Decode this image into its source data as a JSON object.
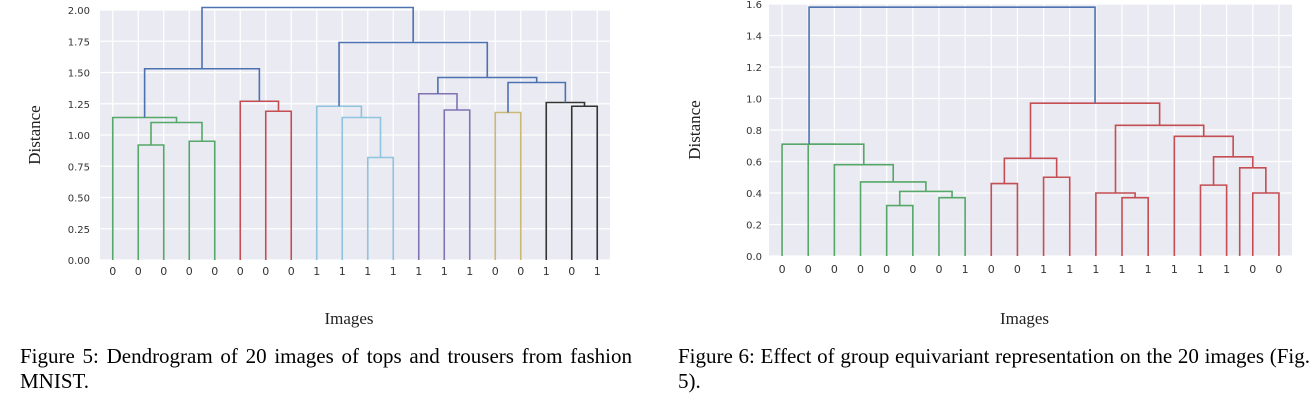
{
  "figures": [
    {
      "caption": "Figure 5: Dendrogram of 20 images of tops and trousers from fashion MNIST.",
      "chart_data": {
        "type": "dendrogram",
        "xlabel": "Images",
        "ylabel": "Distance",
        "ylim": [
          0,
          2.0
        ],
        "yticks": [
          "0.00",
          "0.25",
          "0.50",
          "0.75",
          "1.00",
          "1.25",
          "1.50",
          "1.75",
          "2.00"
        ],
        "ytick_values": [
          0,
          0.25,
          0.5,
          0.75,
          1.0,
          1.25,
          1.5,
          1.75,
          2.0
        ],
        "leaf_labels": [
          "0",
          "0",
          "0",
          "0",
          "0",
          "0",
          "0",
          "0",
          "1",
          "1",
          "1",
          "1",
          "1",
          "1",
          "1",
          "0",
          "0",
          "1",
          "0",
          "1"
        ],
        "grid": true,
        "merges": [
          {
            "left": 2,
            "right": 3,
            "height": 0.92,
            "color": "#55a868"
          },
          {
            "left": 4,
            "right": 5,
            "height": 0.95,
            "color": "#55a868"
          },
          {
            "left": 2.5,
            "right": 4.5,
            "height": 1.1,
            "color": "#55a868"
          },
          {
            "left": 1,
            "right": 3.5,
            "height": 1.14,
            "color": "#55a868"
          },
          {
            "left": 7,
            "right": 8,
            "height": 1.19,
            "color": "#c44e52"
          },
          {
            "left": 6,
            "right": 7.5,
            "height": 1.27,
            "color": "#c44e52"
          },
          {
            "left": 2.25,
            "right": 6.75,
            "height": 1.53,
            "color": "#4c72b0"
          },
          {
            "left": 11,
            "right": 12,
            "height": 0.82,
            "color": "#8ec4dd"
          },
          {
            "left": 10,
            "right": 11.5,
            "height": 1.14,
            "color": "#8ec4dd"
          },
          {
            "left": 9,
            "right": 10.75,
            "height": 1.23,
            "color": "#8ec4dd"
          },
          {
            "left": 14,
            "right": 15,
            "height": 1.2,
            "color": "#8172b2"
          },
          {
            "left": 13,
            "right": 14.5,
            "height": 1.33,
            "color": "#8172b2"
          },
          {
            "left": 16,
            "right": 17,
            "height": 1.18,
            "color": "#ccb974"
          },
          {
            "left": 19,
            "right": 20,
            "height": 1.23,
            "color": "#333333"
          },
          {
            "left": 18,
            "right": 19.5,
            "height": 1.26,
            "color": "#333333"
          },
          {
            "left": 16.5,
            "right": 18.75,
            "height": 1.42,
            "color": "#4c72b0"
          },
          {
            "left": 13.75,
            "right": 17.625,
            "height": 1.46,
            "color": "#4c72b0"
          },
          {
            "left": 9.875,
            "right": 15.6875,
            "height": 1.74,
            "color": "#4c72b0"
          },
          {
            "left": 4.5,
            "right": 12.78125,
            "height": 2.02,
            "color": "#4c72b0"
          }
        ]
      }
    },
    {
      "caption": "Figure 6: Effect of group equivariant representation on the 20 images (Fig. 5).",
      "chart_data": {
        "type": "dendrogram",
        "xlabel": "Images",
        "ylabel": "Distance",
        "ylim": [
          0,
          1.6
        ],
        "yticks": [
          "0.0",
          "0.2",
          "0.4",
          "0.6",
          "0.8",
          "1.0",
          "1.2",
          "1.4",
          "1.6"
        ],
        "ytick_values": [
          0,
          0.2,
          0.4,
          0.6,
          0.8,
          1.0,
          1.2,
          1.4,
          1.6
        ],
        "leaf_labels": [
          "0",
          "0",
          "0",
          "0",
          "0",
          "0",
          "0",
          "1",
          "0",
          "0",
          "1",
          "1",
          "1",
          "1",
          "1",
          "1",
          "1",
          "1",
          "0",
          "0"
        ],
        "grid": true,
        "merges": [
          {
            "left": 5,
            "right": 6,
            "height": 0.32,
            "color": "#55a868"
          },
          {
            "left": 7,
            "right": 8,
            "height": 0.37,
            "color": "#55a868"
          },
          {
            "left": 5.5,
            "right": 7.5,
            "height": 0.41,
            "color": "#55a868"
          },
          {
            "left": 4,
            "right": 6.5,
            "height": 0.47,
            "color": "#55a868"
          },
          {
            "left": 3,
            "right": 5.25,
            "height": 0.58,
            "color": "#55a868"
          },
          {
            "left": 2,
            "right": 4.125,
            "height": 0.71,
            "color": "#55a868"
          },
          {
            "left": 9,
            "right": 10,
            "height": 0.46,
            "color": "#c44e52"
          },
          {
            "left": 11,
            "right": 12,
            "height": 0.5,
            "color": "#c44e52"
          },
          {
            "left": 9.5,
            "right": 11.5,
            "height": 0.62,
            "color": "#c44e52"
          },
          {
            "left": 14,
            "right": 15,
            "height": 0.37,
            "color": "#c44e52"
          },
          {
            "left": 13,
            "right": 14.5,
            "height": 0.4,
            "color": "#c44e52"
          },
          {
            "left": 19,
            "right": 20,
            "height": 0.4,
            "color": "#c44e52"
          },
          {
            "left": 17,
            "right": 18,
            "height": 0.45,
            "color": "#c44e52"
          },
          {
            "left": 18.5,
            "right": 19.5,
            "height": 0.56,
            "color": "#c44e52"
          },
          {
            "left": 17.5,
            "right": 19,
            "height": 0.63,
            "color": "#c44e52"
          },
          {
            "left": 16,
            "right": 18.25,
            "height": 0.76,
            "color": "#c44e52"
          },
          {
            "left": 13.75,
            "right": 17.125,
            "height": 0.83,
            "color": "#c44e52"
          },
          {
            "left": 10.5,
            "right": 15.4375,
            "height": 0.97,
            "color": "#c44e52"
          },
          {
            "left": 1,
            "right": 3.0625,
            "height": 0.71,
            "color": "#55a868"
          },
          {
            "left": 2.03125,
            "right": 12.96875,
            "height": 1.58,
            "color": "#4c72b0"
          }
        ]
      }
    }
  ]
}
